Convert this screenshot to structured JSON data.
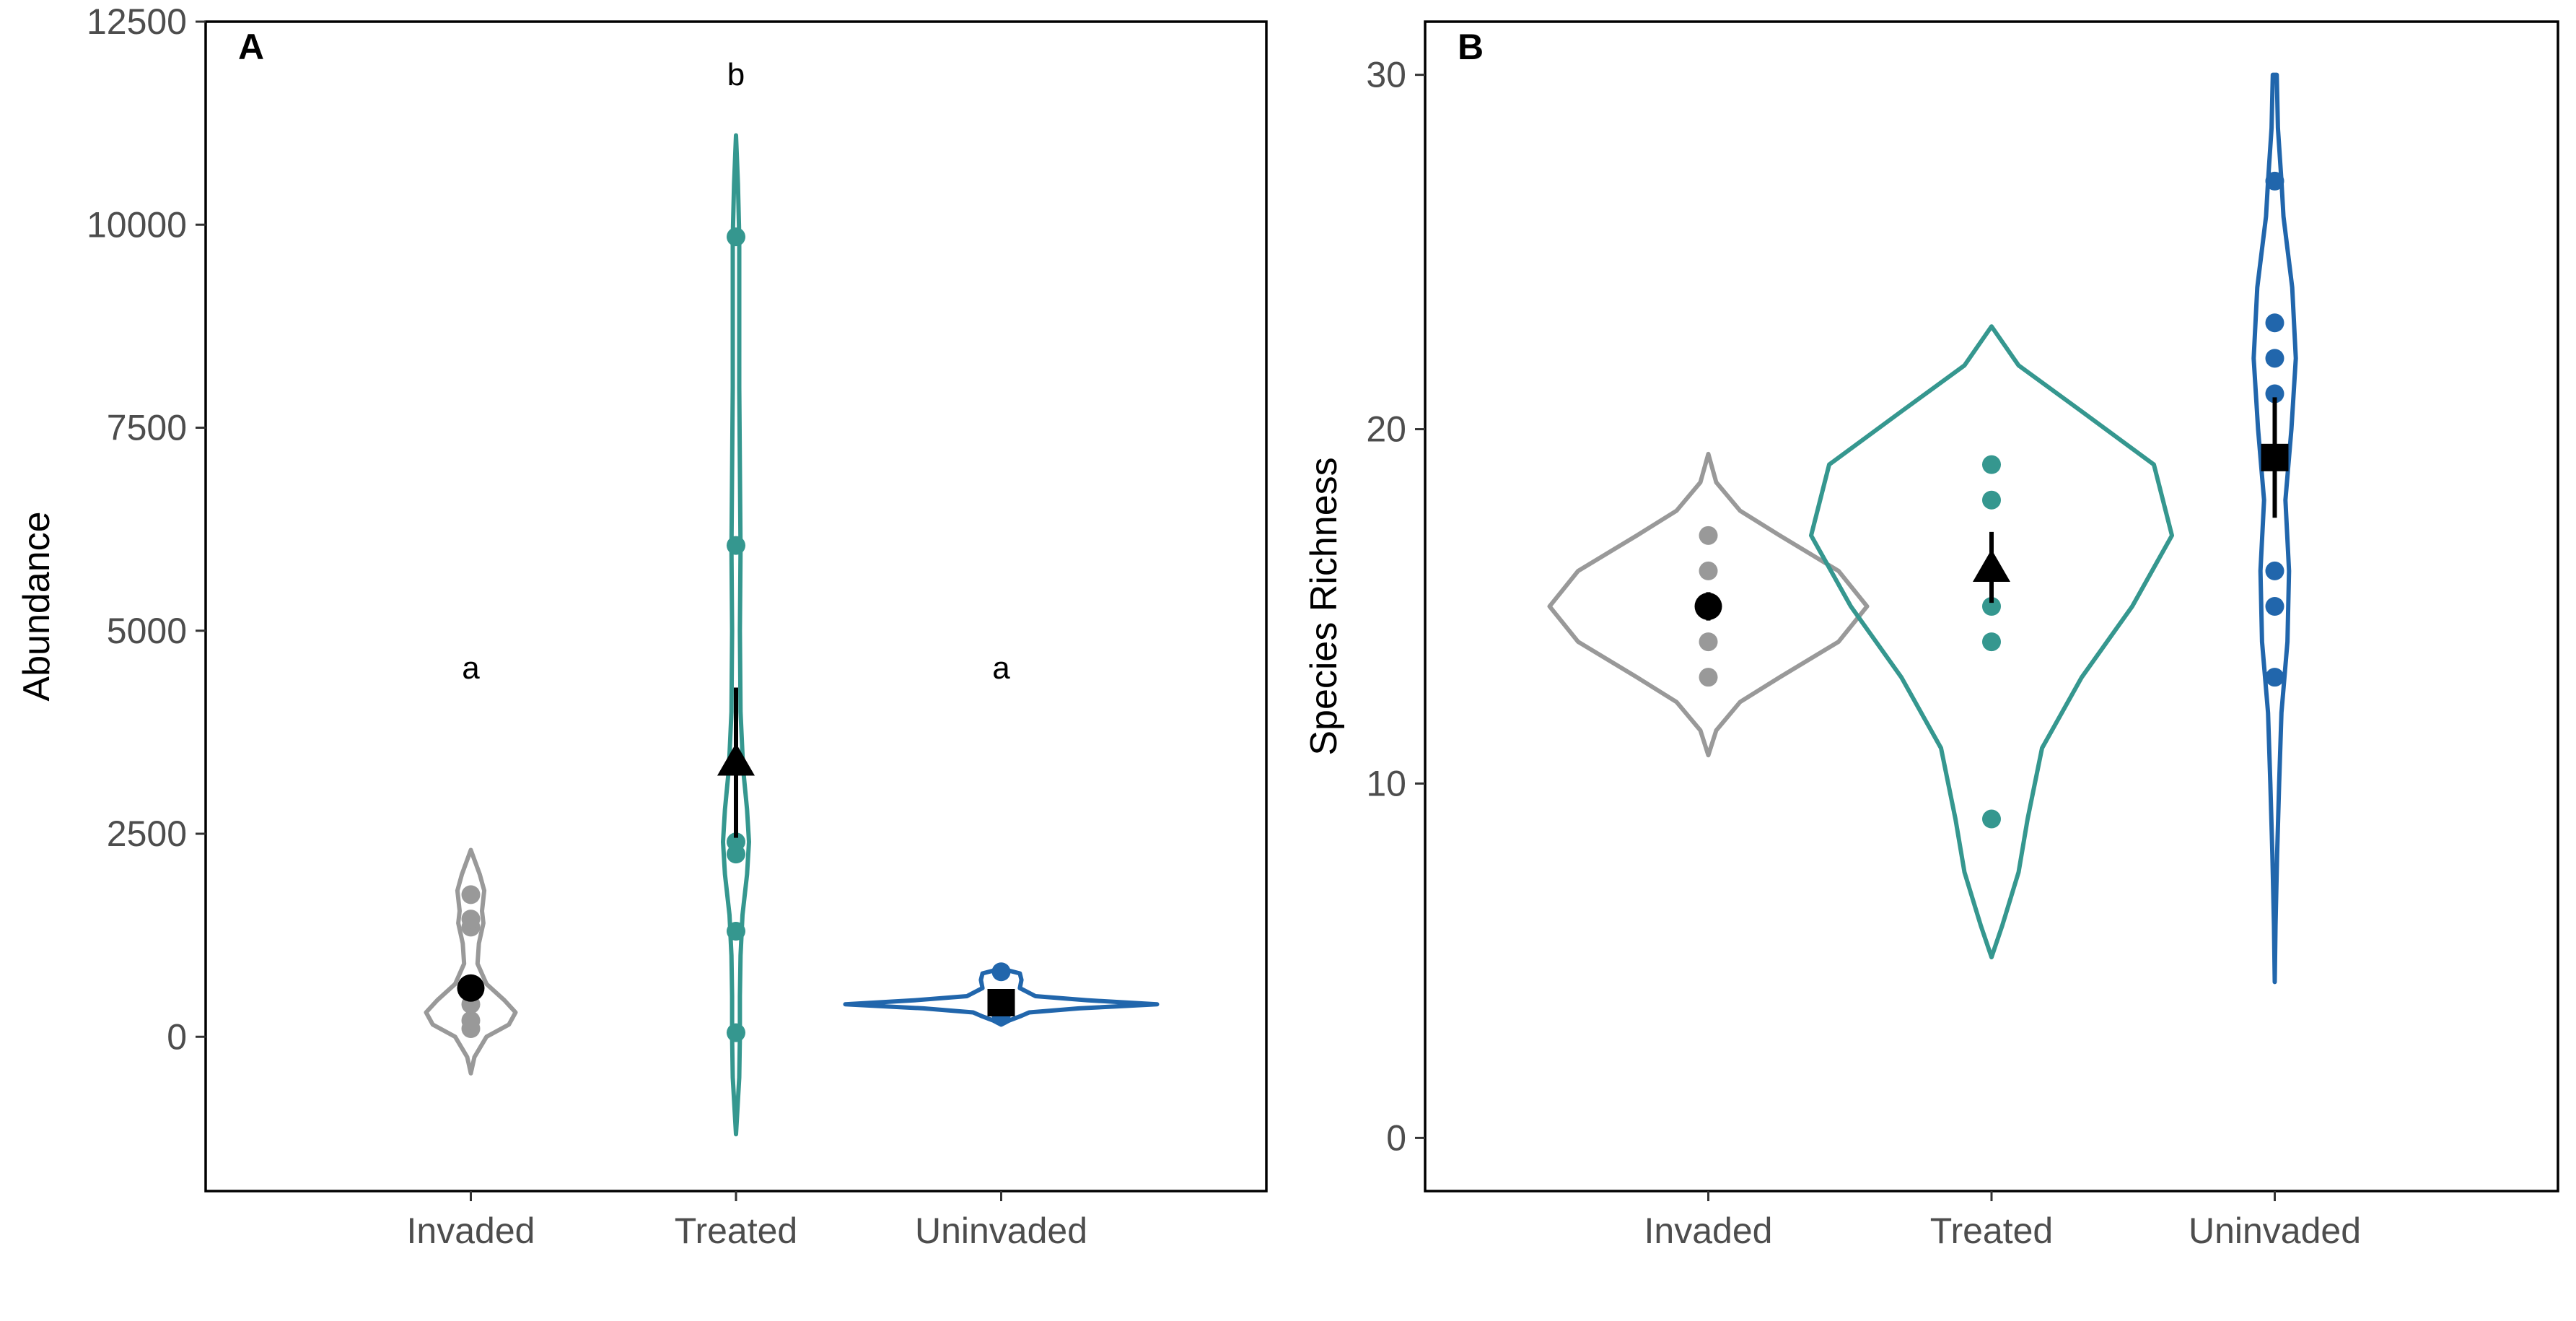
{
  "chart_data": [
    {
      "type": "violin",
      "panel_tag": "A",
      "ylabel": "Abundance",
      "categories": [
        "Invaded",
        "Treated",
        "Uninvaded"
      ],
      "ylim": [
        -1900,
        12500
      ],
      "yticks": [
        0,
        2500,
        5000,
        7500,
        10000,
        12500
      ],
      "ytick_labels": [
        "0",
        "2500",
        "5000",
        "7500",
        "10000",
        "12500"
      ],
      "grid": false,
      "groups": [
        {
          "name": "Invaded",
          "color": "#999999",
          "mean_marker": "circle",
          "points": [
            100,
            200,
            400,
            600,
            1350,
            1450,
            1750
          ],
          "mean": 600,
          "error": [
            450,
            750
          ],
          "sig_letter": "a",
          "violin": [
            [
              -450,
              0
            ],
            [
              -250,
              0.08
            ],
            [
              0,
              0.35
            ],
            [
              150,
              0.85
            ],
            [
              300,
              1
            ],
            [
              450,
              0.75
            ],
            [
              650,
              0.35
            ],
            [
              900,
              0.15
            ],
            [
              1150,
              0.18
            ],
            [
              1400,
              0.28
            ],
            [
              1550,
              0.25
            ],
            [
              1800,
              0.3
            ],
            [
              2000,
              0.2
            ],
            [
              2300,
              0
            ]
          ]
        },
        {
          "name": "Treated",
          "color": "#35978f",
          "mean_marker": "triangle",
          "points": [
            50,
            1300,
            2250,
            2400,
            6050,
            9850
          ],
          "mean": 3350,
          "error": [
            2450,
            4300
          ],
          "sig_letter": "b",
          "violin": [
            [
              -1200,
              0
            ],
            [
              -500,
              0.25
            ],
            [
              0,
              0.3
            ],
            [
              500,
              0.3
            ],
            [
              1000,
              0.35
            ],
            [
              1500,
              0.5
            ],
            [
              2000,
              0.85
            ],
            [
              2400,
              1
            ],
            [
              2800,
              0.85
            ],
            [
              3300,
              0.55
            ],
            [
              4000,
              0.35
            ],
            [
              5000,
              0.3
            ],
            [
              6000,
              0.35
            ],
            [
              7000,
              0.3
            ],
            [
              8000,
              0.25
            ],
            [
              9000,
              0.25
            ],
            [
              9850,
              0.25
            ],
            [
              10500,
              0.15
            ],
            [
              11100,
              0
            ]
          ]
        },
        {
          "name": "Uninvaded",
          "color": "#2166ac",
          "mean_marker": "square",
          "points": [
            250,
            400,
            450,
            800
          ],
          "mean": 420,
          "error": [
            360,
            520
          ],
          "sig_letter": "a",
          "violin": [
            [
              150,
              0
            ],
            [
              200,
              0.05
            ],
            [
              250,
              0.12
            ],
            [
              300,
              0.18
            ],
            [
              350,
              0.5
            ],
            [
              400,
              1
            ],
            [
              450,
              0.55
            ],
            [
              500,
              0.22
            ],
            [
              600,
              0.12
            ],
            [
              700,
              0.13
            ],
            [
              780,
              0.12
            ],
            [
              840,
              0
            ]
          ]
        }
      ]
    },
    {
      "type": "violin",
      "panel_tag": "B",
      "ylabel": "Species Richness",
      "categories": [
        "Invaded",
        "Treated",
        "Uninvaded"
      ],
      "ylim": [
        -1.5,
        31.5
      ],
      "yticks": [
        0,
        10,
        20,
        30
      ],
      "ytick_labels": [
        "0",
        "10",
        "20",
        "30"
      ],
      "grid": false,
      "groups": [
        {
          "name": "Invaded",
          "color": "#999999",
          "mean_marker": "circle",
          "points": [
            13,
            14,
            15,
            16,
            17
          ],
          "mean": 15,
          "error": [
            14.6,
            15.4
          ],
          "violin": [
            [
              10.8,
              0
            ],
            [
              11.5,
              0.05
            ],
            [
              12.3,
              0.2
            ],
            [
              13,
              0.45
            ],
            [
              14,
              0.82
            ],
            [
              15,
              1
            ],
            [
              16,
              0.82
            ],
            [
              17,
              0.45
            ],
            [
              17.7,
              0.2
            ],
            [
              18.5,
              0.05
            ],
            [
              19.3,
              0
            ]
          ]
        },
        {
          "name": "Treated",
          "color": "#35978f",
          "mean_marker": "triangle",
          "points": [
            9,
            14,
            15,
            18,
            19
          ],
          "mean": 16,
          "error": [
            15.1,
            17.1
          ],
          "violin": [
            [
              5.1,
              0
            ],
            [
              6,
              0.06
            ],
            [
              7.5,
              0.15
            ],
            [
              9,
              0.2
            ],
            [
              11,
              0.28
            ],
            [
              13,
              0.5
            ],
            [
              15,
              0.78
            ],
            [
              17,
              1
            ],
            [
              19,
              0.9
            ],
            [
              20.5,
              0.5
            ],
            [
              21.8,
              0.15
            ],
            [
              22.9,
              0
            ]
          ]
        },
        {
          "name": "Uninvaded",
          "color": "#2166ac",
          "mean_marker": "square",
          "points": [
            13,
            15,
            16,
            21,
            22,
            23,
            27
          ],
          "mean": 19.2,
          "error": [
            17.5,
            20.9
          ],
          "violin": [
            [
              4.4,
              0
            ],
            [
              6,
              0.02
            ],
            [
              8,
              0.06
            ],
            [
              10,
              0.11
            ],
            [
              12,
              0.17
            ],
            [
              14,
              0.32
            ],
            [
              16,
              0.36
            ],
            [
              18,
              0.27
            ],
            [
              20,
              0.42
            ],
            [
              22,
              0.53
            ],
            [
              24,
              0.44
            ],
            [
              26,
              0.22
            ],
            [
              27,
              0.17
            ],
            [
              28.5,
              0.08
            ],
            [
              30,
              0.05
            ],
            [
              30,
              0
            ]
          ]
        }
      ]
    }
  ]
}
